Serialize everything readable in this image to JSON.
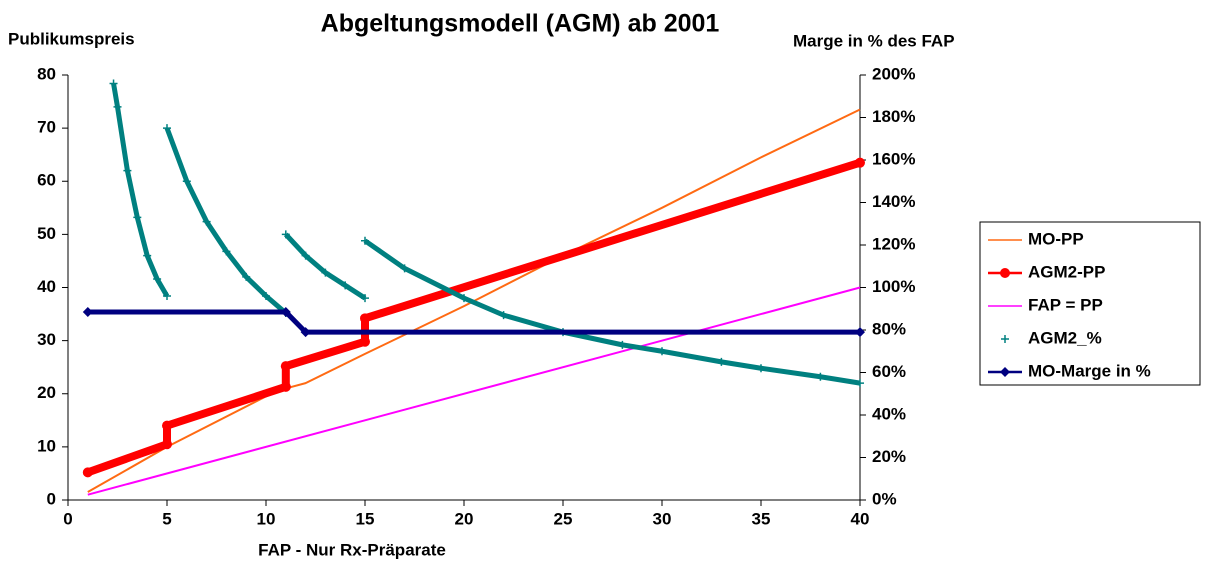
{
  "chart_data": {
    "type": "line",
    "title": "Abgeltungsmodell (AGM) ab 2001",
    "y_label": "Publikumspreis",
    "y2_label": "Marge in % des FAP",
    "x_label": "FAP - Nur Rx-Präparate",
    "xlim": [
      0,
      40
    ],
    "xticks": [
      0,
      5,
      10,
      15,
      20,
      25,
      30,
      35,
      40
    ],
    "ylim": [
      0,
      80
    ],
    "yticks": [
      0,
      10,
      20,
      30,
      40,
      50,
      60,
      70,
      80
    ],
    "y2lim": [
      0,
      200
    ],
    "y2ticks": [
      {
        "value": 0,
        "label": "0%"
      },
      {
        "value": 20,
        "label": "20%"
      },
      {
        "value": 40,
        "label": "40%"
      },
      {
        "value": 60,
        "label": "60%"
      },
      {
        "value": 80,
        "label": "80%"
      },
      {
        "value": 100,
        "label": "100%"
      },
      {
        "value": 120,
        "label": "120%"
      },
      {
        "value": 140,
        "label": "140%"
      },
      {
        "value": 160,
        "label": "160%"
      },
      {
        "value": 180,
        "label": "180%"
      },
      {
        "value": 200,
        "label": "200%"
      }
    ],
    "grid": false,
    "legend": "right",
    "series": [
      {
        "name": "MO-PP",
        "color": "#ff6a13",
        "marker": "none",
        "width": 2,
        "x": [
          1,
          5,
          10,
          11,
          12,
          15,
          20,
          25,
          30,
          35,
          40
        ],
        "values": [
          1.5,
          10,
          19.5,
          21,
          22,
          27.5,
          36.5,
          46,
          55,
          64.5,
          73.5
        ]
      },
      {
        "name": "AGM2-PP",
        "color": "#ff0000",
        "marker": "circle",
        "width": 8,
        "x": [
          1,
          5,
          5,
          11,
          11,
          15,
          15,
          40
        ],
        "values": [
          5.2,
          10.5,
          14,
          21.3,
          25.2,
          29.8,
          34.2,
          63.5
        ]
      },
      {
        "name": "FAP = PP",
        "color": "#ff00ff",
        "marker": "none",
        "width": 2,
        "x": [
          1,
          40
        ],
        "values": [
          1,
          40
        ]
      },
      {
        "name": "AGM2_%",
        "color": "#008080",
        "marker": "plus",
        "width": 5,
        "axis": "y2",
        "x": [
          2.3,
          2.5,
          3,
          3.5,
          4,
          4.5,
          5,
          null,
          5,
          6,
          7,
          8,
          9,
          10,
          11,
          null,
          11,
          12,
          13,
          14,
          15,
          null,
          15,
          17,
          20,
          22,
          25,
          28,
          30,
          33,
          35,
          38,
          40
        ],
        "values": [
          196,
          185,
          155,
          133,
          115,
          104,
          96,
          null,
          175,
          150,
          131,
          117,
          105,
          96,
          88,
          null,
          125,
          115,
          107,
          101,
          95,
          null,
          122,
          109,
          95,
          87,
          79,
          73,
          70,
          65,
          62,
          58,
          55
        ]
      },
      {
        "name": "MO-Marge in %",
        "color": "#000080",
        "marker": "diamond",
        "width": 5,
        "axis": "y2",
        "x": [
          1,
          11,
          12,
          40
        ],
        "values": [
          88.5,
          88.5,
          79,
          79
        ]
      }
    ]
  }
}
